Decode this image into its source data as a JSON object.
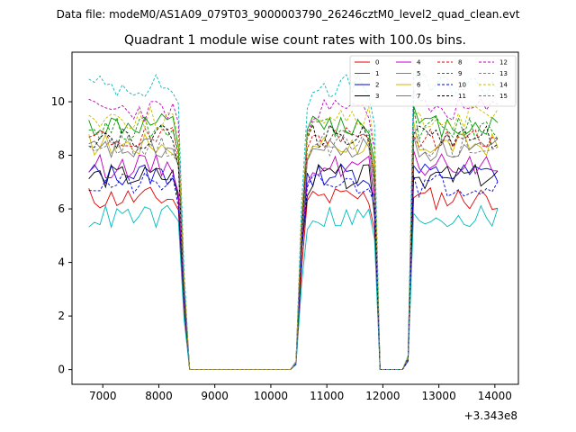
{
  "suptitle": "Data file: modeM0/AS1A09_079T03_9000003790_26246cztM0_level2_quad_clean.evt",
  "chart_data": {
    "type": "line",
    "title": "Quadrant 1 module wise count rates with 100.0s bins.",
    "xlabel": "",
    "ylabel": "",
    "x_offset_text": "+3.343e8",
    "xlim": [
      6450,
      14420
    ],
    "ylim": [
      -0.55,
      11.85
    ],
    "xticks": [
      7000,
      8000,
      9000,
      10000,
      11000,
      12000,
      13000,
      14000
    ],
    "yticks": [
      0,
      2,
      4,
      6,
      8,
      10
    ],
    "grid": false,
    "legend_position": "top-right",
    "x": [
      6750,
      6850,
      6950,
      7050,
      7150,
      7250,
      7350,
      7450,
      7550,
      7650,
      7750,
      7850,
      7950,
      8050,
      8150,
      8250,
      8350,
      8450,
      8550,
      8650,
      8750,
      8850,
      8950,
      9050,
      9150,
      9250,
      9350,
      9450,
      9550,
      9650,
      9750,
      9850,
      9950,
      10050,
      10150,
      10250,
      10350,
      10450,
      10550,
      10650,
      10750,
      10850,
      10950,
      11050,
      11150,
      11250,
      11350,
      11450,
      11550,
      11650,
      11750,
      11850,
      11950,
      12050,
      12150,
      12250,
      12350,
      12450,
      12550,
      12650,
      12750,
      12850,
      12950,
      13050,
      13150,
      13250,
      13350,
      13450,
      13550,
      13650,
      13750,
      13850,
      13950,
      14050
    ],
    "series": [
      {
        "name": "0",
        "color": "#e00000",
        "dash": false,
        "base": 6.4,
        "seed": 11
      },
      {
        "name": "1",
        "color": "#009900",
        "dash": false,
        "base": 9.1,
        "seed": 12
      },
      {
        "name": "2",
        "color": "#0000dd",
        "dash": false,
        "base": 7.3,
        "seed": 13
      },
      {
        "name": "3",
        "color": "#000000",
        "dash": false,
        "base": 7.2,
        "seed": 14
      },
      {
        "name": "4",
        "color": "#bb00bb",
        "dash": false,
        "base": 7.6,
        "seed": 15
      },
      {
        "name": "5",
        "color": "#00bbbb",
        "dash": false,
        "base": 5.7,
        "seed": 16
      },
      {
        "name": "6",
        "color": "#ccbb00",
        "dash": false,
        "base": 8.4,
        "seed": 17
      },
      {
        "name": "7",
        "color": "#777777",
        "dash": false,
        "base": 8.2,
        "seed": 18
      },
      {
        "name": "8",
        "color": "#e00000",
        "dash": true,
        "base": 8.6,
        "seed": 19
      },
      {
        "name": "9",
        "color": "#009900",
        "dash": true,
        "base": 9.0,
        "seed": 20
      },
      {
        "name": "10",
        "color": "#0000dd",
        "dash": true,
        "base": 6.9,
        "seed": 21
      },
      {
        "name": "11",
        "color": "#000000",
        "dash": true,
        "base": 8.7,
        "seed": 22
      },
      {
        "name": "12",
        "color": "#bb00bb",
        "dash": true,
        "base": 9.7,
        "seed": 23
      },
      {
        "name": "13",
        "color": "#00bbbb",
        "dash": true,
        "base": 10.6,
        "seed": 24
      },
      {
        "name": "14",
        "color": "#ccbb00",
        "dash": true,
        "base": 9.4,
        "seed": 25
      },
      {
        "name": "15",
        "color": "#777777",
        "dash": true,
        "base": 8.4,
        "seed": 26
      }
    ]
  }
}
